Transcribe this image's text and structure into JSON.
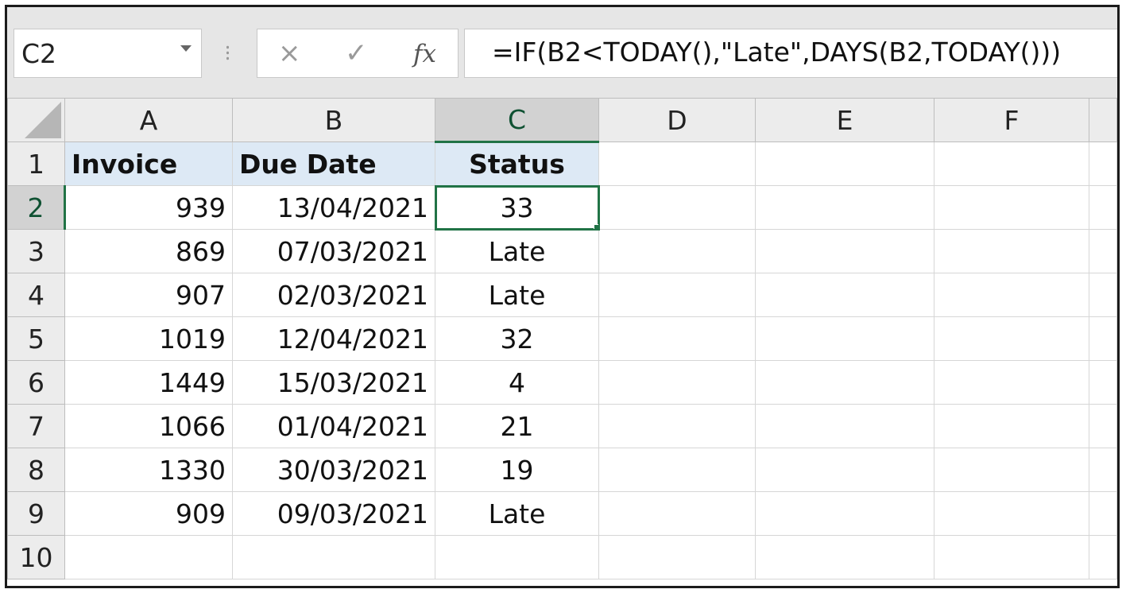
{
  "formula_bar": {
    "name_box": "C2",
    "formula": "=IF(B2<TODAY(),\"Late\",DAYS(B2,TODAY()))",
    "cancel_icon": "×",
    "enter_icon": "✓",
    "fx_label": "fx"
  },
  "columns": [
    "A",
    "B",
    "C",
    "D",
    "E",
    "F"
  ],
  "header_row": {
    "row_label": "1",
    "invoice": "Invoice",
    "due_date": "Due Date",
    "status": "Status"
  },
  "rows": [
    {
      "row": "2",
      "invoice": "939",
      "due_date": "13/04/2021",
      "status": "33"
    },
    {
      "row": "3",
      "invoice": "869",
      "due_date": "07/03/2021",
      "status": "Late"
    },
    {
      "row": "4",
      "invoice": "907",
      "due_date": "02/03/2021",
      "status": "Late"
    },
    {
      "row": "5",
      "invoice": "1019",
      "due_date": "12/04/2021",
      "status": "32"
    },
    {
      "row": "6",
      "invoice": "1449",
      "due_date": "15/03/2021",
      "status": "4"
    },
    {
      "row": "7",
      "invoice": "1066",
      "due_date": "01/04/2021",
      "status": "21"
    },
    {
      "row": "8",
      "invoice": "1330",
      "due_date": "30/03/2021",
      "status": "19"
    },
    {
      "row": "9",
      "invoice": "909",
      "due_date": "09/03/2021",
      "status": "Late"
    }
  ],
  "empty_row_label": "10",
  "colors": {
    "selection": "#217346",
    "header_fill": "#dde9f5"
  }
}
